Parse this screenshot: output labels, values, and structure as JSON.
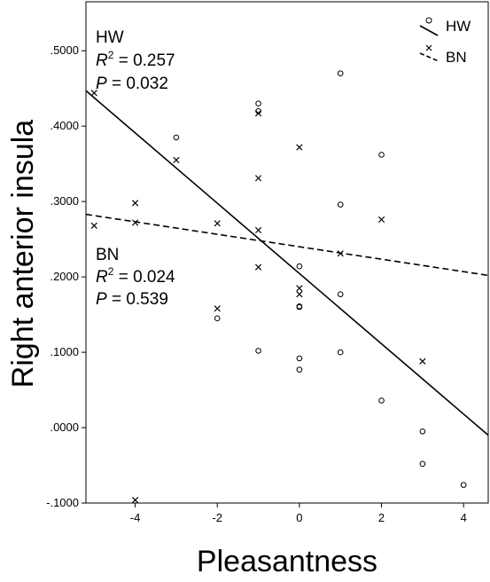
{
  "chart_data": {
    "type": "scatter",
    "xlabel": "Pleasantness",
    "ylabel": "Right anterior insula",
    "xlim": [
      -5.2,
      4.6
    ],
    "ylim": [
      -0.1,
      0.565
    ],
    "xticks": [
      -4,
      -2,
      0,
      2,
      4
    ],
    "xtick_labels": [
      "-4",
      "-2",
      "0",
      "2",
      "4"
    ],
    "yticks": [
      -0.1,
      0.0,
      0.1,
      0.2,
      0.3,
      0.4,
      0.5
    ],
    "ytick_labels": [
      "-.1000",
      ".0000",
      ".1000",
      ".2000",
      ".3000",
      ".4000",
      ".5000"
    ],
    "grid": false,
    "legend_position": "top-right",
    "series": [
      {
        "name": "HW",
        "marker": "circle",
        "line_style": "solid",
        "points": [
          [
            1,
            0.47
          ],
          [
            -1,
            0.43
          ],
          [
            -1,
            0.42
          ],
          [
            -3,
            0.385
          ],
          [
            2,
            0.362
          ],
          [
            1,
            0.296
          ],
          [
            0,
            0.214
          ],
          [
            1,
            0.177
          ],
          [
            0,
            0.16
          ],
          [
            0,
            0.161
          ],
          [
            -2,
            0.145
          ],
          [
            -1,
            0.102
          ],
          [
            1,
            0.1
          ],
          [
            0,
            0.092
          ],
          [
            0,
            0.077
          ],
          [
            2,
            0.036
          ],
          [
            3,
            -0.005
          ],
          [
            3,
            -0.048
          ],
          [
            4,
            -0.076
          ]
        ],
        "fit_line": {
          "x": [
            -5.2,
            4.6
          ],
          "y": [
            0.447,
            -0.01
          ]
        }
      },
      {
        "name": "BN",
        "marker": "x",
        "line_style": "dashed",
        "points": [
          [
            -5,
            0.444
          ],
          [
            -1,
            0.417
          ],
          [
            0,
            0.372
          ],
          [
            -3,
            0.355
          ],
          [
            -1,
            0.331
          ],
          [
            -4,
            0.298
          ],
          [
            2,
            0.276
          ],
          [
            -4,
            0.272
          ],
          [
            -2,
            0.271
          ],
          [
            -5,
            0.268
          ],
          [
            -1,
            0.262
          ],
          [
            1,
            0.231
          ],
          [
            -1,
            0.213
          ],
          [
            0,
            0.185
          ],
          [
            0,
            0.177
          ],
          [
            -2,
            0.158
          ],
          [
            3,
            0.088
          ],
          [
            -4,
            -0.096
          ]
        ],
        "fit_line": {
          "x": [
            -5.2,
            4.6
          ],
          "y": [
            0.283,
            0.202
          ]
        }
      }
    ],
    "annotations": [
      {
        "group": "HW",
        "name": "HW",
        "r2_label": "R",
        "r2_sup": "2",
        "r2_value": " = 0.257",
        "p_label": "P",
        "p_value": " = 0.032"
      },
      {
        "group": "BN",
        "name": "BN",
        "r2_label": "R",
        "r2_sup": "2",
        "r2_value": " = 0.024",
        "p_label": "P",
        "p_value": " = 0.539"
      }
    ]
  }
}
